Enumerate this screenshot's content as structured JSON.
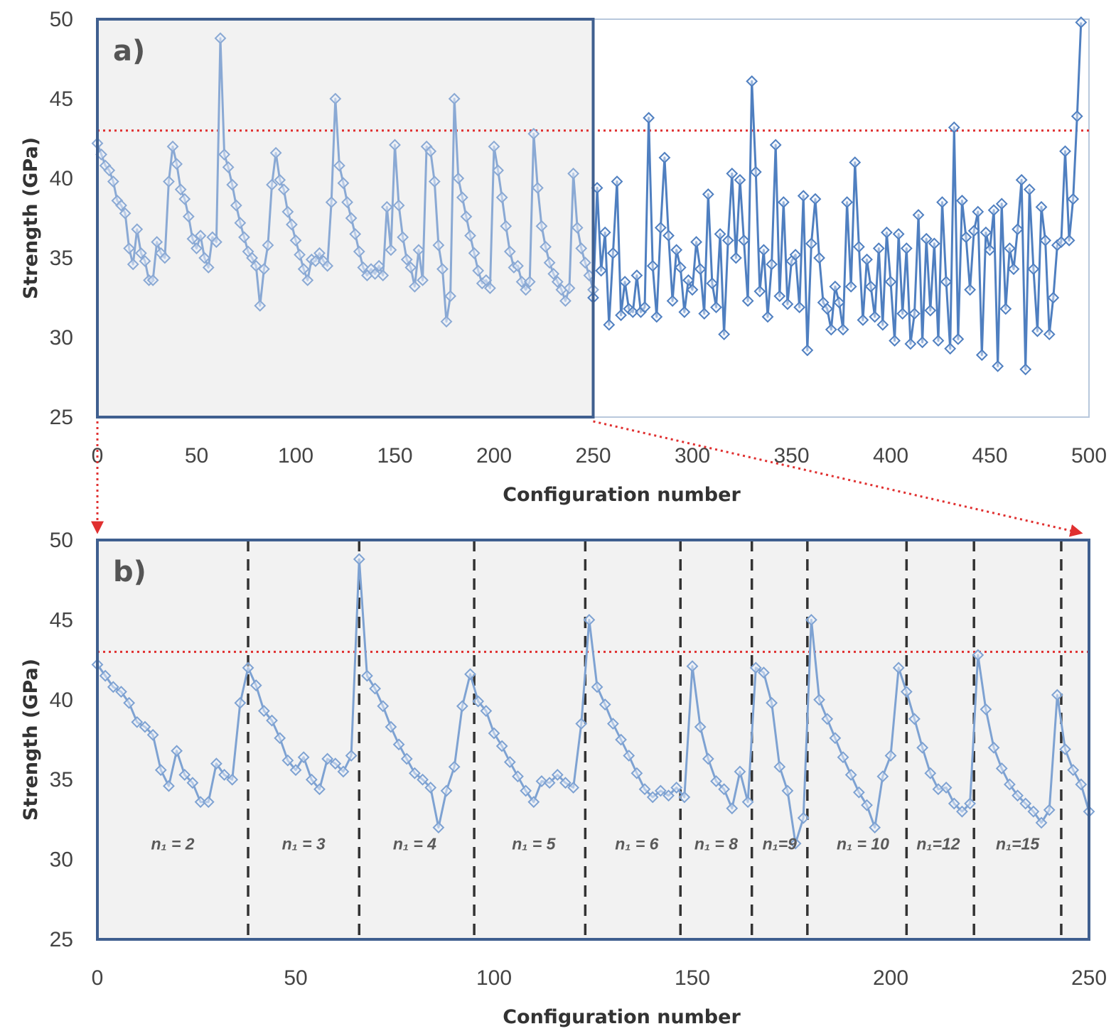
{
  "colors": {
    "series_a_first_half": "#8aa9d4",
    "series_a_second_half": "#4f7fc0",
    "series_b": "#7ea2d2",
    "threshold": "#e03030",
    "zoom_box_border": "#3f5f8f",
    "plot_shade": "#f2f2f2",
    "segment_divider": "#333333",
    "zoom_arrow": "#e03030"
  },
  "chart_data": [
    {
      "id": "a",
      "type": "line",
      "panel_label": "a)",
      "xlabel": "Configuration number",
      "ylabel": "Strength (GPa)",
      "xlim": [
        0,
        500
      ],
      "ylim": [
        25,
        50
      ],
      "xticks": [
        0,
        50,
        100,
        150,
        200,
        250,
        300,
        350,
        400,
        450,
        500
      ],
      "yticks": [
        25,
        30,
        35,
        40,
        45,
        50
      ],
      "grid": false,
      "marker": "diamond",
      "threshold": 43,
      "zoom_region": [
        0,
        250
      ],
      "series": [
        {
          "x": [
            0,
            2,
            4,
            6,
            8,
            10,
            12,
            14,
            16,
            18,
            20,
            22,
            24,
            26,
            28,
            30,
            32,
            34,
            36,
            38,
            40,
            42,
            44,
            46,
            48,
            50,
            52,
            54,
            56,
            58,
            60,
            62,
            64,
            66,
            68,
            70,
            72,
            74,
            76,
            78,
            80,
            82,
            84,
            86,
            88,
            90,
            92,
            94,
            96,
            98,
            100,
            102,
            104,
            106,
            108,
            110,
            112,
            114,
            116,
            118,
            120,
            122,
            124,
            126,
            128,
            130,
            132,
            134,
            136,
            138,
            140,
            142,
            144,
            146,
            148,
            150,
            152,
            154,
            156,
            158,
            160,
            162,
            164,
            166,
            168,
            170,
            172,
            174,
            176,
            178,
            180,
            182,
            184,
            186,
            188,
            190,
            192,
            194,
            196,
            198,
            200,
            202,
            204,
            206,
            208,
            210,
            212,
            214,
            216,
            218,
            220,
            222,
            224,
            226,
            228,
            230,
            232,
            234,
            236,
            238,
            240,
            242,
            244,
            246,
            248,
            250
          ],
          "y": [
            42.2,
            41.5,
            40.8,
            40.5,
            39.8,
            38.6,
            38.3,
            37.8,
            35.6,
            34.6,
            36.8,
            35.3,
            34.8,
            33.6,
            33.6,
            36.0,
            35.3,
            35.0,
            39.8,
            42.0,
            40.9,
            39.3,
            38.7,
            37.6,
            36.2,
            35.6,
            36.4,
            35.0,
            34.4,
            36.3,
            36.0,
            48.8,
            41.5,
            40.7,
            39.6,
            38.3,
            37.2,
            36.3,
            35.4,
            35.0,
            34.5,
            32.0,
            34.3,
            35.8,
            39.6,
            41.6,
            39.9,
            39.3,
            37.9,
            37.1,
            36.1,
            35.2,
            34.3,
            33.6,
            34.9,
            34.8,
            35.3,
            34.8,
            34.5,
            38.5,
            45.0,
            40.8,
            39.7,
            38.5,
            37.5,
            36.5,
            35.4,
            34.4,
            33.9,
            34.3,
            34.0,
            34.5,
            33.9,
            38.2,
            35.5,
            42.1,
            38.3,
            36.3,
            34.9,
            34.4,
            33.2,
            35.5,
            33.6,
            42.0,
            41.7,
            39.8,
            35.8,
            34.3,
            31.0,
            32.6,
            45.0,
            40.0,
            38.8,
            37.6,
            36.4,
            35.3,
            34.2,
            33.4,
            33.6,
            33.1,
            42.0,
            40.5,
            38.8,
            37.0,
            35.4,
            34.4,
            34.5,
            33.5,
            33.0,
            33.5,
            42.8,
            39.4,
            37.0,
            35.7,
            34.7,
            34.0,
            33.5,
            33.0,
            32.3,
            33.1,
            40.3,
            36.9,
            35.6,
            34.7,
            33.9,
            33.0
          ]
        },
        {
          "x": [
            250,
            252,
            254,
            256,
            258,
            260,
            262,
            264,
            266,
            268,
            270,
            272,
            274,
            276,
            278,
            280,
            282,
            284,
            286,
            288,
            290,
            292,
            294,
            296,
            298,
            300,
            302,
            304,
            306,
            308,
            310,
            312,
            314,
            316,
            318,
            320,
            322,
            324,
            326,
            328,
            330,
            332,
            334,
            336,
            338,
            340,
            342,
            344,
            346,
            348,
            350,
            352,
            354,
            356,
            358,
            360,
            362,
            364,
            366,
            368,
            370,
            372,
            374,
            376,
            378,
            380,
            382,
            384,
            386,
            388,
            390,
            392,
            394,
            396,
            398,
            400,
            402,
            404,
            406,
            408,
            410,
            412,
            414,
            416,
            418,
            420,
            422,
            424,
            426,
            428,
            430,
            432,
            434,
            436,
            438,
            440,
            442,
            444,
            446,
            448,
            450,
            452,
            454,
            456,
            458,
            460,
            462,
            464,
            466,
            468,
            470,
            472,
            474,
            476,
            478,
            480,
            482,
            484,
            486,
            488,
            490,
            492,
            494,
            496
          ],
          "y": [
            32.5,
            39.4,
            34.2,
            36.6,
            30.8,
            35.3,
            39.8,
            31.4,
            33.5,
            31.8,
            31.6,
            33.9,
            31.6,
            31.9,
            43.8,
            34.5,
            31.3,
            36.9,
            41.3,
            36.4,
            32.3,
            35.5,
            34.4,
            31.6,
            33.6,
            33.0,
            36.0,
            34.3,
            31.5,
            39.0,
            33.4,
            31.9,
            36.5,
            30.2,
            36.1,
            40.3,
            35.0,
            39.9,
            36.1,
            32.3,
            46.1,
            40.4,
            32.9,
            35.5,
            31.3,
            34.6,
            42.1,
            32.6,
            38.5,
            32.1,
            34.8,
            35.2,
            31.9,
            38.9,
            29.2,
            35.9,
            38.7,
            35.0,
            32.2,
            31.8,
            30.5,
            33.2,
            32.2,
            30.5,
            38.5,
            33.2,
            41.0,
            35.7,
            31.1,
            34.9,
            33.2,
            31.3,
            35.6,
            30.8,
            36.6,
            33.5,
            29.8,
            36.5,
            31.5,
            35.6,
            29.6,
            31.5,
            37.7,
            29.7,
            36.2,
            31.7,
            35.9,
            29.8,
            38.5,
            33.5,
            29.3,
            43.2,
            29.9,
            38.6,
            36.3,
            33.0,
            36.7,
            37.9,
            28.9,
            36.6,
            35.5,
            38.0,
            28.2,
            38.4,
            31.8,
            35.6,
            34.3,
            36.8,
            39.9,
            28.0,
            39.3,
            34.3,
            30.4,
            38.2,
            36.1,
            30.2,
            32.5,
            35.8,
            36.0,
            41.7,
            36.1,
            38.7,
            43.9,
            49.8
          ]
        }
      ]
    },
    {
      "id": "b",
      "type": "line",
      "panel_label": "b)",
      "xlabel": "Configuration number",
      "ylabel": "Strength (GPa)",
      "xlim": [
        0,
        250
      ],
      "ylim": [
        25,
        50
      ],
      "xticks": [
        0,
        50,
        100,
        150,
        200,
        250
      ],
      "yticks": [
        25,
        30,
        35,
        40,
        45,
        50
      ],
      "grid": false,
      "marker": "diamond",
      "threshold": 43,
      "dividers": [
        38,
        66,
        95,
        123,
        147,
        165,
        179,
        204,
        221,
        243
      ],
      "segments": [
        {
          "label": "n₁ = 2",
          "x": 19
        },
        {
          "label": "n₁ = 3",
          "x": 52
        },
        {
          "label": "n₁ = 4",
          "x": 80
        },
        {
          "label": "n₁ = 5",
          "x": 110
        },
        {
          "label": "n₁ = 6",
          "x": 136
        },
        {
          "label": "n₁ = 8",
          "x": 156
        },
        {
          "label": "n₁=9",
          "x": 172
        },
        {
          "label": "n₁ = 10",
          "x": 193
        },
        {
          "label": "n₁=12",
          "x": 212
        },
        {
          "label": "n₁=15",
          "x": 232
        }
      ],
      "series": [
        {
          "x": [
            0,
            2,
            4,
            6,
            8,
            10,
            12,
            14,
            16,
            18,
            20,
            22,
            24,
            26,
            28,
            30,
            32,
            34,
            36,
            38,
            40,
            42,
            44,
            46,
            48,
            50,
            52,
            54,
            56,
            58,
            60,
            62,
            64,
            66,
            68,
            70,
            72,
            74,
            76,
            78,
            80,
            82,
            84,
            86,
            88,
            90,
            92,
            94,
            96,
            98,
            100,
            102,
            104,
            106,
            108,
            110,
            112,
            114,
            116,
            118,
            120,
            122,
            124,
            126,
            128,
            130,
            132,
            134,
            136,
            138,
            140,
            142,
            144,
            146,
            148,
            150,
            152,
            154,
            156,
            158,
            160,
            162,
            164,
            166,
            168,
            170,
            172,
            174,
            176,
            178,
            180,
            182,
            184,
            186,
            188,
            190,
            192,
            194,
            196,
            198,
            200,
            202,
            204,
            206,
            208,
            210,
            212,
            214,
            216,
            218,
            220,
            222,
            224,
            226,
            228,
            230,
            232,
            234,
            236,
            238,
            240,
            242,
            244,
            246,
            248,
            250
          ],
          "y": [
            42.2,
            41.5,
            40.8,
            40.5,
            39.8,
            38.6,
            38.3,
            37.8,
            35.6,
            34.6,
            36.8,
            35.3,
            34.8,
            33.6,
            33.6,
            36.0,
            35.3,
            35.0,
            39.8,
            42.0,
            40.9,
            39.3,
            38.7,
            37.6,
            36.2,
            35.6,
            36.4,
            35.0,
            34.4,
            36.3,
            36.0,
            35.5,
            36.5,
            48.8,
            41.5,
            40.7,
            39.6,
            38.3,
            37.2,
            36.3,
            35.4,
            35.0,
            34.5,
            32.0,
            34.3,
            35.8,
            39.6,
            41.6,
            39.9,
            39.3,
            37.9,
            37.1,
            36.1,
            35.2,
            34.3,
            33.6,
            34.9,
            34.8,
            35.3,
            34.8,
            34.5,
            38.5,
            45.0,
            40.8,
            39.7,
            38.5,
            37.5,
            36.5,
            35.4,
            34.4,
            33.9,
            34.3,
            34.0,
            34.5,
            33.9,
            42.1,
            38.3,
            36.3,
            34.9,
            34.4,
            33.2,
            35.5,
            33.6,
            42.0,
            41.7,
            39.8,
            35.8,
            34.3,
            31.0,
            32.6,
            45.0,
            40.0,
            38.8,
            37.6,
            36.4,
            35.3,
            34.2,
            33.4,
            32.0,
            35.2,
            36.5,
            42.0,
            40.5,
            38.8,
            37.0,
            35.4,
            34.4,
            34.5,
            33.5,
            33.0,
            33.5,
            42.8,
            39.4,
            37.0,
            35.7,
            34.7,
            34.0,
            33.5,
            33.0,
            32.3,
            33.1,
            40.3,
            36.9,
            35.6,
            34.7,
            33.0
          ]
        }
      ]
    }
  ]
}
